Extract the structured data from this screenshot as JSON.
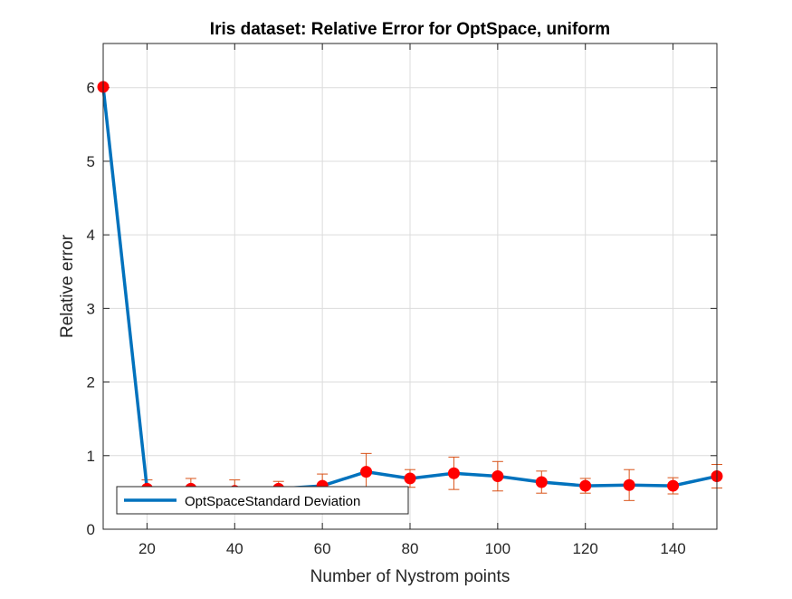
{
  "chart_data": {
    "type": "line",
    "title": "Iris dataset: Relative Error for OptSpace, uniform",
    "xlabel": "Number of Nystrom points",
    "ylabel": "Relative error",
    "xlim": [
      10,
      150
    ],
    "ylim": [
      0,
      6.6
    ],
    "xticks": [
      20,
      40,
      60,
      80,
      100,
      120,
      140
    ],
    "yticks": [
      0,
      1,
      2,
      3,
      4,
      5,
      6
    ],
    "xtick_labels": [
      "20",
      "40",
      "60",
      "80",
      "100",
      "120",
      "140"
    ],
    "ytick_labels": [
      "0",
      "1",
      "2",
      "3",
      "4",
      "5",
      "6"
    ],
    "grid": true,
    "legend_location": "bottom-left",
    "legend_entries": [
      "OptSpaceStandard Deviation"
    ],
    "series": [
      {
        "name": "OptSpaceStandard Deviation",
        "color": "#0072BD",
        "marker_color": "#FF0000",
        "errorbar_color": "#D95319",
        "x": [
          10,
          20,
          30,
          40,
          50,
          60,
          70,
          80,
          90,
          100,
          110,
          120,
          130,
          140,
          150
        ],
        "y": [
          6.01,
          0.55,
          0.55,
          0.52,
          0.55,
          0.59,
          0.78,
          0.69,
          0.76,
          0.72,
          0.64,
          0.59,
          0.6,
          0.59,
          0.72
        ],
        "error": [
          0.0,
          0.12,
          0.14,
          0.15,
          0.1,
          0.16,
          0.25,
          0.12,
          0.22,
          0.2,
          0.15,
          0.1,
          0.21,
          0.11,
          0.16
        ]
      }
    ]
  }
}
